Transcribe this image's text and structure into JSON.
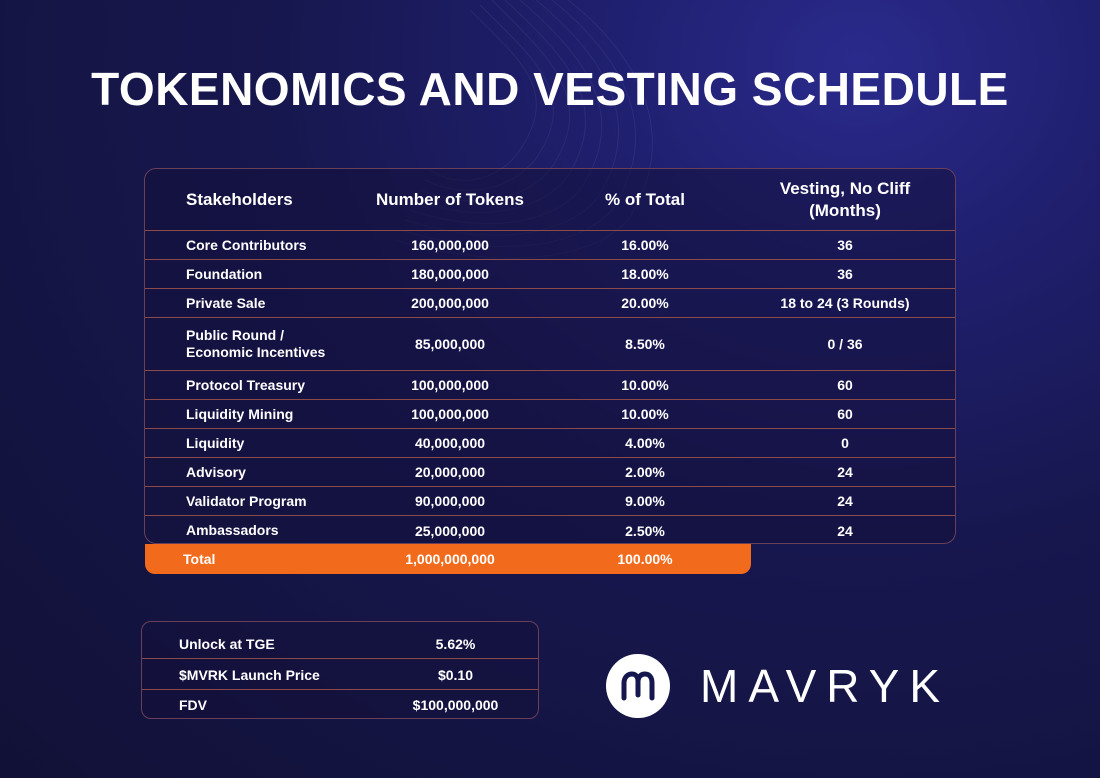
{
  "title": "TOKENOMICS AND VESTING SCHEDULE",
  "table": {
    "headers": {
      "stakeholders": "Stakeholders",
      "tokens": "Number of Tokens",
      "percent": "% of Total",
      "vesting": "Vesting, No Cliff (Months)"
    },
    "rows": [
      {
        "stakeholder": "Core Contributors",
        "tokens": "160,000,000",
        "percent": "16.00%",
        "vesting": "36"
      },
      {
        "stakeholder": "Foundation",
        "tokens": "180,000,000",
        "percent": "18.00%",
        "vesting": "36"
      },
      {
        "stakeholder": "Private Sale",
        "tokens": "200,000,000",
        "percent": "20.00%",
        "vesting": "18 to 24 (3 Rounds)"
      },
      {
        "stakeholder": "Public Round / Economic Incentives",
        "tokens": "85,000,000",
        "percent": "8.50%",
        "vesting": "0 / 36"
      },
      {
        "stakeholder": "Protocol Treasury",
        "tokens": "100,000,000",
        "percent": "10.00%",
        "vesting": "60"
      },
      {
        "stakeholder": "Liquidity Mining",
        "tokens": "100,000,000",
        "percent": "10.00%",
        "vesting": "60"
      },
      {
        "stakeholder": "Liquidity",
        "tokens": "40,000,000",
        "percent": "4.00%",
        "vesting": "0"
      },
      {
        "stakeholder": "Advisory",
        "tokens": "20,000,000",
        "percent": "2.00%",
        "vesting": "24"
      },
      {
        "stakeholder": "Validator Program",
        "tokens": "90,000,000",
        "percent": "9.00%",
        "vesting": "24"
      },
      {
        "stakeholder": "Ambassadors",
        "tokens": "25,000,000",
        "percent": "2.50%",
        "vesting": "24"
      }
    ],
    "total": {
      "label": "Total",
      "tokens": "1,000,000,000",
      "percent": "100.00%"
    }
  },
  "summary": [
    {
      "label": "Unlock at TGE",
      "value": "5.62%"
    },
    {
      "label": "$MVRK Launch Price",
      "value": "$0.10"
    },
    {
      "label": "FDV",
      "value": "$100,000,000"
    }
  ],
  "brand": {
    "name": "MAVRYK",
    "logo_icon": "mavryk-logo-icon"
  },
  "colors": {
    "accent": "#f26a1b",
    "background": "#17174f",
    "divider": "#8c4a48"
  }
}
